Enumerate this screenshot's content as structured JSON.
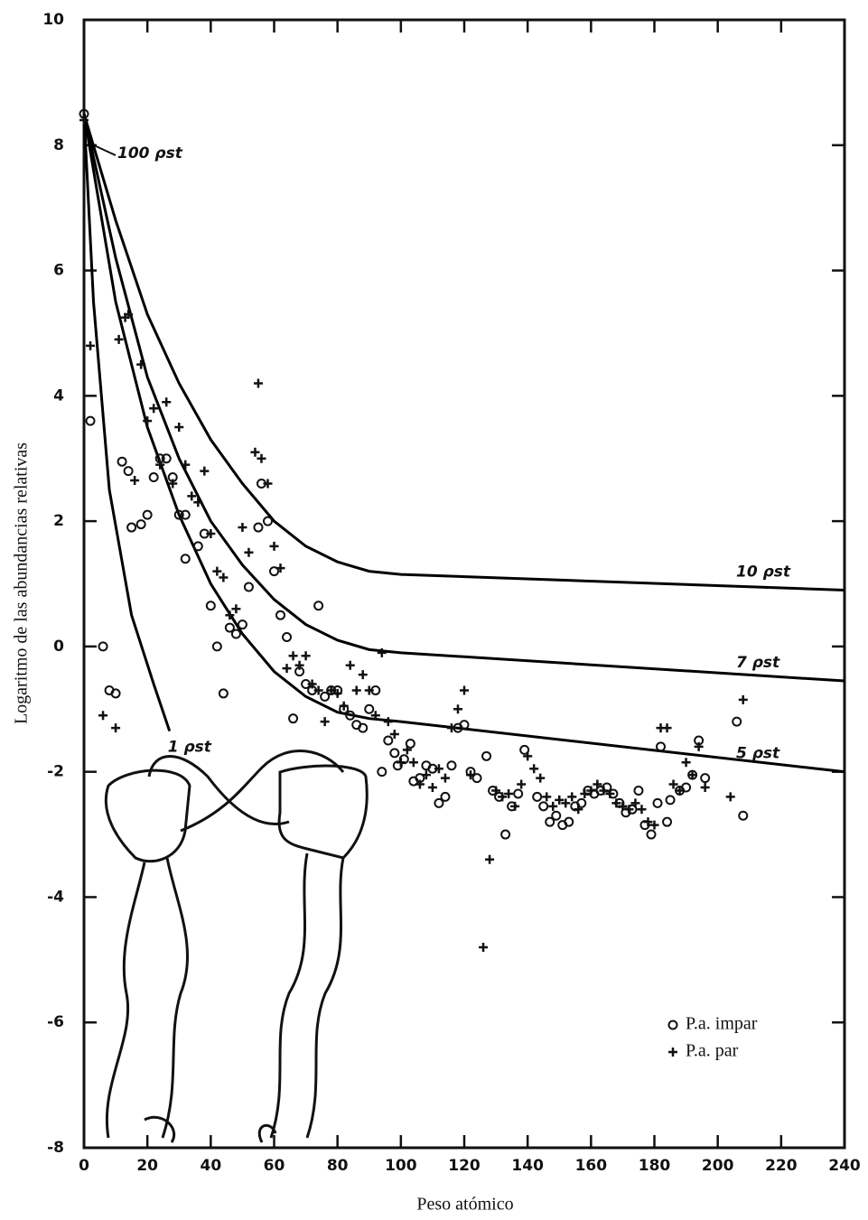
{
  "chart_data": {
    "type": "scatter",
    "x_label": "Peso atómico",
    "y_label": "Logaritmo de las abundancias relativas",
    "xlim": [
      0,
      240
    ],
    "xticks": [
      0,
      20,
      40,
      60,
      80,
      100,
      120,
      140,
      160,
      180,
      200,
      220,
      240
    ],
    "ylim": [
      -8,
      10
    ],
    "yticks": [
      -8,
      -6,
      -4,
      -2,
      0,
      2,
      4,
      6,
      8,
      10
    ],
    "legend": "lower right",
    "series": [
      {
        "name": "P.a. impar",
        "marker": "circle",
        "color": "#111111",
        "x": [
          0,
          2,
          6,
          8,
          10,
          12,
          14,
          15,
          18,
          20,
          22,
          24,
          26,
          28,
          30,
          32,
          32,
          36,
          38,
          40,
          42,
          44,
          46,
          48,
          50,
          52,
          55,
          56,
          58,
          60,
          62,
          64,
          66,
          68,
          70,
          72,
          74,
          76,
          78,
          80,
          82,
          84,
          86,
          88,
          90,
          92,
          94,
          96,
          98,
          99,
          101,
          103,
          104,
          106,
          108,
          110,
          112,
          114,
          116,
          118,
          120,
          122,
          124,
          127,
          129,
          131,
          133,
          135,
          137,
          139,
          143,
          145,
          147,
          149,
          151,
          153,
          155,
          157,
          159,
          161,
          163,
          165,
          167,
          169,
          171,
          173,
          175,
          177,
          179,
          181,
          182,
          184,
          185,
          188,
          190,
          192,
          194,
          196,
          206,
          208
        ],
        "values": [
          8.5,
          3.6,
          0,
          -0.7,
          -0.75,
          2.95,
          2.8,
          1.9,
          1.95,
          2.1,
          2.7,
          3.0,
          3.0,
          2.7,
          2.1,
          2.1,
          1.4,
          1.6,
          1.8,
          0.65,
          0,
          -0.75,
          0.3,
          0.2,
          0.35,
          0.95,
          1.9,
          2.6,
          2.0,
          1.2,
          0.5,
          0.15,
          -1.15,
          -0.4,
          -0.6,
          -0.7,
          0.65,
          -0.8,
          -0.7,
          -0.7,
          -1.0,
          -1.1,
          -1.25,
          -1.3,
          -1.0,
          -0.7,
          -2.0,
          -1.5,
          -1.7,
          -1.9,
          -1.8,
          -1.55,
          -2.15,
          -2.1,
          -1.9,
          -1.95,
          -2.5,
          -2.4,
          -1.9,
          -1.3,
          -1.25,
          -2.0,
          -2.1,
          -1.75,
          -2.3,
          -2.4,
          -3.0,
          -2.55,
          -2.35,
          -1.65,
          -2.4,
          -2.55,
          -2.8,
          -2.7,
          -2.85,
          -2.8,
          -2.55,
          -2.5,
          -2.3,
          -2.35,
          -2.3,
          -2.25,
          -2.35,
          -2.5,
          -2.65,
          -2.6,
          -2.3,
          -2.85,
          -3.0,
          -2.5,
          -1.6,
          -2.8,
          -2.45,
          -2.3,
          -2.25,
          -2.05,
          -1.5,
          -2.1,
          -1.2,
          -2.7
        ]
      },
      {
        "name": "P.a. par",
        "marker": "plus",
        "color": "#111111",
        "x": [
          0,
          2,
          6,
          10,
          11,
          13,
          14,
          16,
          18,
          20,
          22,
          24,
          26,
          28,
          30,
          32,
          34,
          36,
          38,
          40,
          42,
          44,
          46,
          48,
          50,
          52,
          54,
          55,
          56,
          58,
          60,
          62,
          64,
          66,
          68,
          70,
          72,
          74,
          76,
          78,
          80,
          82,
          84,
          86,
          88,
          90,
          92,
          94,
          96,
          98,
          100,
          102,
          104,
          106,
          108,
          110,
          112,
          114,
          116,
          118,
          120,
          122,
          126,
          128,
          130,
          132,
          134,
          136,
          138,
          140,
          142,
          144,
          146,
          148,
          150,
          152,
          154,
          156,
          158,
          160,
          162,
          164,
          166,
          168,
          170,
          172,
          174,
          176,
          178,
          180,
          182,
          184,
          186,
          188,
          190,
          192,
          194,
          196,
          204,
          208
        ],
        "values": [
          8.4,
          4.8,
          -1.1,
          -1.3,
          4.9,
          5.25,
          5.3,
          2.65,
          4.5,
          3.6,
          3.8,
          2.9,
          3.9,
          2.6,
          3.5,
          2.9,
          2.4,
          2.3,
          2.8,
          1.8,
          1.2,
          1.1,
          0.5,
          0.6,
          1.9,
          1.5,
          3.1,
          4.2,
          3.0,
          2.6,
          1.6,
          1.25,
          -0.35,
          -0.15,
          -0.3,
          -0.15,
          -0.6,
          -0.7,
          -1.2,
          -0.7,
          -0.75,
          -0.95,
          -0.3,
          -0.7,
          -0.45,
          -0.7,
          -1.1,
          -0.1,
          -1.2,
          -1.4,
          -1.85,
          -1.65,
          -1.85,
          -2.2,
          -2.05,
          -2.25,
          -1.95,
          -2.1,
          -1.3,
          -1.0,
          -0.7,
          -2.05,
          -4.8,
          -3.4,
          -2.3,
          -2.4,
          -2.35,
          -2.55,
          -2.2,
          -1.75,
          -1.95,
          -2.1,
          -2.4,
          -2.55,
          -2.45,
          -2.5,
          -2.4,
          -2.6,
          -2.35,
          -2.3,
          -2.2,
          -2.3,
          -2.35,
          -2.5,
          -2.55,
          -2.6,
          -2.5,
          -2.6,
          -2.8,
          -2.85,
          -1.3,
          -1.3,
          -2.2,
          -2.3,
          -1.85,
          -2.05,
          -1.6,
          -2.25,
          -2.4,
          -0.85
        ]
      }
    ],
    "curves": [
      {
        "name": "10 ρst",
        "color": "#000000",
        "x": [
          0,
          10,
          20,
          30,
          40,
          50,
          60,
          70,
          80,
          90,
          100,
          240
        ],
        "values": [
          8.5,
          6.8,
          5.3,
          4.2,
          3.3,
          2.6,
          2.0,
          1.6,
          1.35,
          1.2,
          1.15,
          0.9
        ]
      },
      {
        "name": "7 ρst",
        "color": "#000000",
        "x": [
          0,
          10,
          20,
          30,
          40,
          50,
          60,
          70,
          80,
          90,
          100,
          240
        ],
        "values": [
          8.5,
          6.2,
          4.3,
          3.0,
          2.0,
          1.3,
          0.75,
          0.35,
          0.1,
          -0.05,
          -0.1,
          -0.55
        ]
      },
      {
        "name": "5 ρst",
        "color": "#000000",
        "x": [
          0,
          10,
          20,
          30,
          40,
          50,
          60,
          70,
          80,
          90,
          100,
          240
        ],
        "values": [
          8.5,
          5.5,
          3.5,
          2.1,
          1.0,
          0.2,
          -0.4,
          -0.8,
          -1.05,
          -1.15,
          -1.2,
          -2.0
        ]
      },
      {
        "name": "1 ρst",
        "color": "#000000",
        "x": [
          0,
          3,
          8,
          15,
          22,
          27
        ],
        "values": [
          8.5,
          5.5,
          2.5,
          0.5,
          -0.6,
          -1.35
        ]
      }
    ],
    "annotations": [
      "100 ρst"
    ]
  }
}
